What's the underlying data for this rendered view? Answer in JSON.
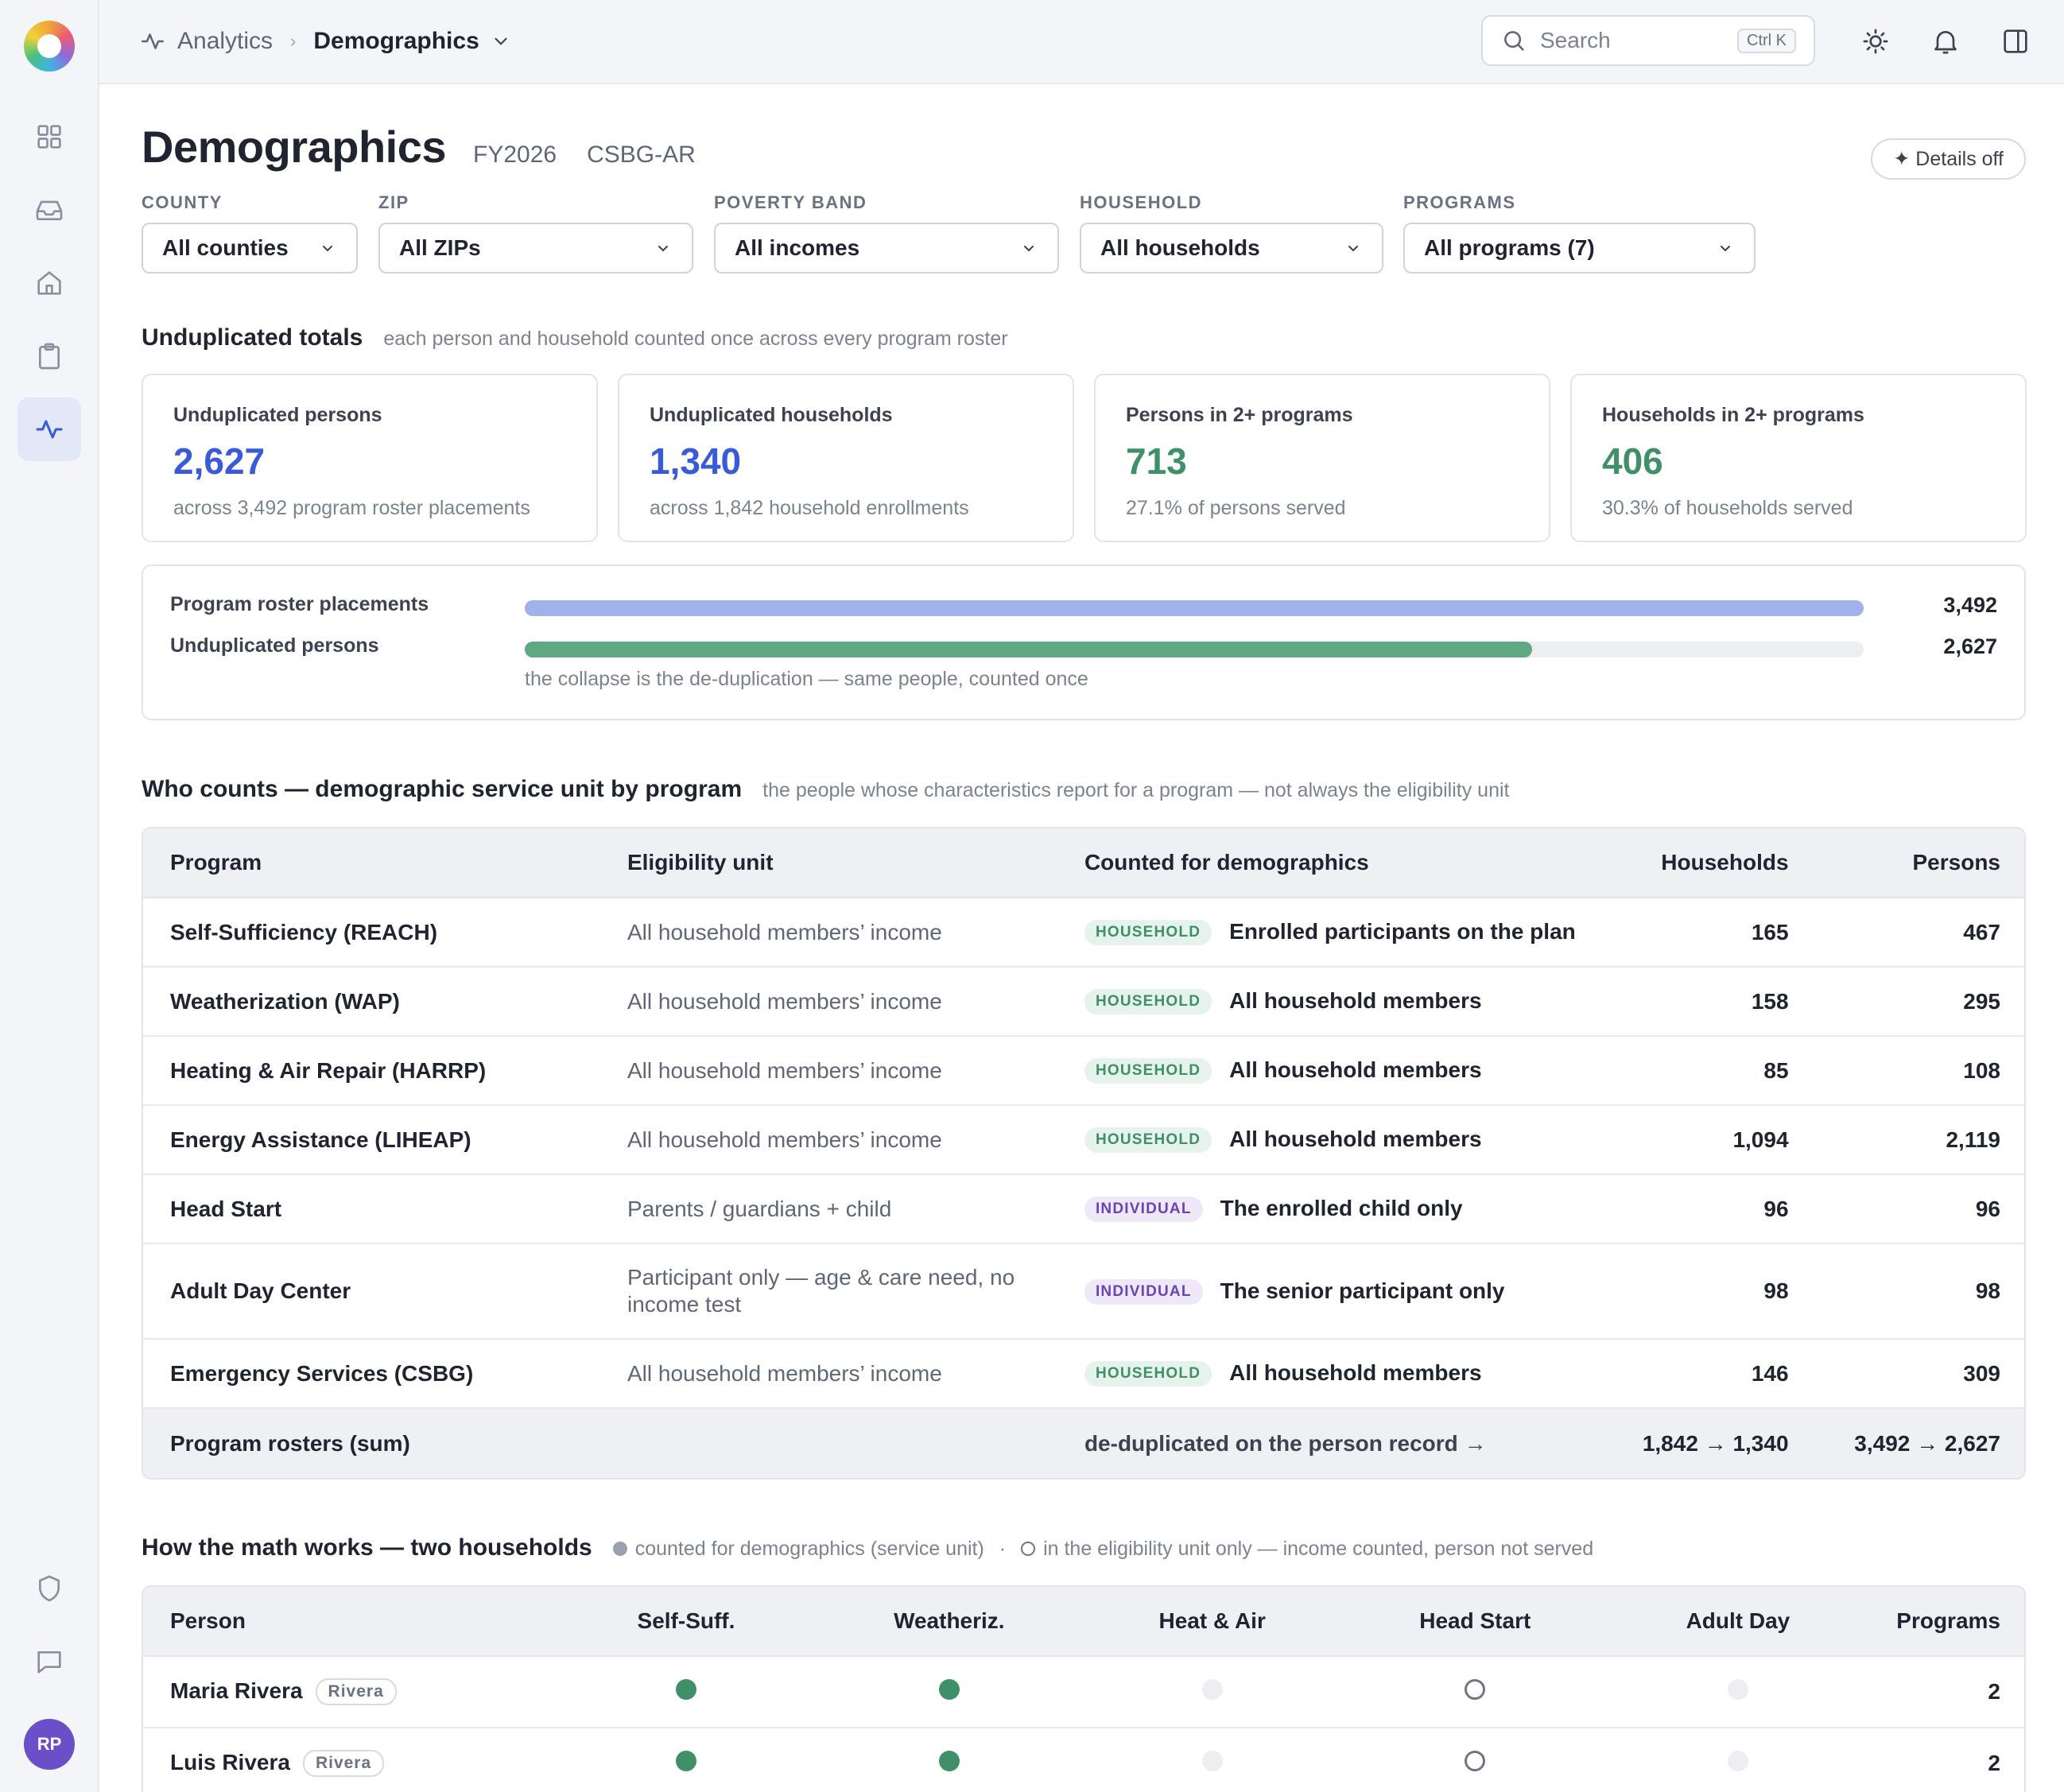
{
  "topbar": {
    "breadcrumb": [
      "Analytics",
      "Demographics"
    ],
    "search_placeholder": "Search",
    "search_shortcut": "Ctrl K"
  },
  "sidebar": {
    "avatar_initials": "RP",
    "items": [
      "grid-icon",
      "inbox-icon",
      "home-icon",
      "clipboard-icon",
      "activity-icon"
    ],
    "bottom_items": [
      "shield-icon",
      "chat-icon"
    ]
  },
  "header": {
    "title": "Demographics",
    "fiscal_year": "FY2026",
    "report": "CSBG-AR",
    "details_button": "✦ Details off"
  },
  "filters": [
    {
      "label": "COUNTY",
      "value": "All counties"
    },
    {
      "label": "ZIP",
      "value": "All ZIPs"
    },
    {
      "label": "POVERTY BAND",
      "value": "All incomes"
    },
    {
      "label": "HOUSEHOLD",
      "value": "All households"
    },
    {
      "label": "PROGRAMS",
      "value": "All programs (7)"
    }
  ],
  "totals": {
    "title": "Unduplicated totals",
    "subtitle": "each person and household counted once across every program roster",
    "cards": [
      {
        "label": "Unduplicated persons",
        "value": "2,627",
        "sub": "across 3,492 program roster placements",
        "color": "#3b5bd6"
      },
      {
        "label": "Unduplicated households",
        "value": "1,340",
        "sub": "across 1,842 household enrollments",
        "color": "#3b5bd6"
      },
      {
        "label": "Persons in 2+ programs",
        "value": "713",
        "sub": "27.1% of persons served",
        "color": "#3f8f68"
      },
      {
        "label": "Households in 2+ programs",
        "value": "406",
        "sub": "30.3% of households served",
        "color": "#3f8f68"
      }
    ]
  },
  "dedup_bars": {
    "rows": [
      {
        "label": "Program roster placements",
        "value": 3492,
        "display": "3,492",
        "color": "#9fb2ea"
      },
      {
        "label": "Unduplicated persons",
        "value": 2627,
        "display": "2,627",
        "color": "#5fa882"
      }
    ],
    "max": 3492,
    "note": "the collapse is the de-duplication — same people, counted once"
  },
  "service_unit": {
    "title": "Who counts — demographic service unit by program",
    "subtitle": "the people whose characteristics report for a program — not always the eligibility unit",
    "columns": [
      "Program",
      "Eligibility unit",
      "Counted for demographics",
      "Households",
      "Persons"
    ],
    "rows": [
      {
        "program": "Self-Sufficiency (REACH)",
        "eligibility": "All household members’ income",
        "unit": "HOUSEHOLD",
        "counted": "Enrolled participants on the plan",
        "households": "165",
        "persons": "467"
      },
      {
        "program": "Weatherization (WAP)",
        "eligibility": "All household members’ income",
        "unit": "HOUSEHOLD",
        "counted": "All household members",
        "households": "158",
        "persons": "295"
      },
      {
        "program": "Heating & Air Repair (HARRP)",
        "eligibility": "All household members’ income",
        "unit": "HOUSEHOLD",
        "counted": "All household members",
        "households": "85",
        "persons": "108"
      },
      {
        "program": "Energy Assistance (LIHEAP)",
        "eligibility": "All household members’ income",
        "unit": "HOUSEHOLD",
        "counted": "All household members",
        "households": "1,094",
        "persons": "2,119"
      },
      {
        "program": "Head Start",
        "eligibility": "Parents / guardians + child",
        "unit": "INDIVIDUAL",
        "counted": "The enrolled child only",
        "households": "96",
        "persons": "96"
      },
      {
        "program": "Adult Day Center",
        "eligibility": "Participant only — age & care need, no income test",
        "unit": "INDIVIDUAL",
        "counted": "The senior participant only",
        "households": "98",
        "persons": "98"
      },
      {
        "program": "Emergency Services (CSBG)",
        "eligibility": "All household members’ income",
        "unit": "HOUSEHOLD",
        "counted": "All household members",
        "households": "146",
        "persons": "309"
      }
    ],
    "sum": {
      "label": "Program rosters (sum)",
      "note": "de-duplicated on the person record →",
      "households": "1,842 → 1,340",
      "persons": "3,492 → 2,627"
    }
  },
  "math": {
    "title": "How the math works — two households",
    "legend_filled": "counted for demographics (service unit)",
    "legend_sep": "·",
    "legend_ring": "in the eligibility unit only — income counted, person not served",
    "columns": [
      "Person",
      "Self-Suff.",
      "Weatheriz.",
      "Heat & Air",
      "Head Start",
      "Adult Day",
      "Programs"
    ],
    "rows": [
      {
        "person": "Maria Rivera",
        "household": "Rivera",
        "cells": [
          "filled",
          "filled",
          "none",
          "ring",
          "none"
        ],
        "programs": "2"
      },
      {
        "person": "Luis Rivera",
        "household": "Rivera",
        "cells": [
          "filled",
          "filled",
          "none",
          "ring",
          "none"
        ],
        "programs": "2"
      }
    ]
  }
}
